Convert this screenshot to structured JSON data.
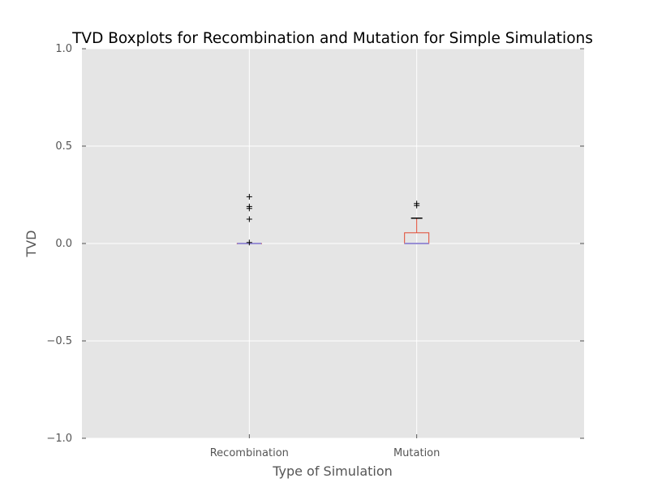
{
  "chart_data": {
    "type": "box",
    "title": "TVD Boxplots for Recombination and Mutation for Simple Simulations",
    "xlabel": "Type of Simulation",
    "ylabel": "TVD",
    "ylim": [
      -1.0,
      1.0
    ],
    "yticks": [
      -1.0,
      -0.5,
      0.0,
      0.5,
      1.0
    ],
    "ytick_labels": [
      "−1.0",
      "−0.5",
      "0.0",
      "0.5",
      "1.0"
    ],
    "grid": true,
    "categories": [
      "Recombination",
      "Mutation"
    ],
    "boxes": [
      {
        "category": "Recombination",
        "q1": 0.0,
        "median": 0.0,
        "q3": 0.0,
        "whisker_low": 0.0,
        "whisker_high": 0.0,
        "outliers": [
          0.24,
          0.19,
          0.18,
          0.125,
          0.005
        ]
      },
      {
        "category": "Mutation",
        "q1": 0.0,
        "median": 0.0,
        "q3": 0.055,
        "whisker_low": 0.0,
        "whisker_high": 0.13,
        "outliers": [
          0.205,
          0.195
        ]
      }
    ],
    "colors": {
      "background": "#e5e5e5",
      "grid": "#ffffff",
      "box": "#e24a33",
      "median": "#988ed5",
      "flier": "#000000",
      "text": "#555555"
    }
  }
}
